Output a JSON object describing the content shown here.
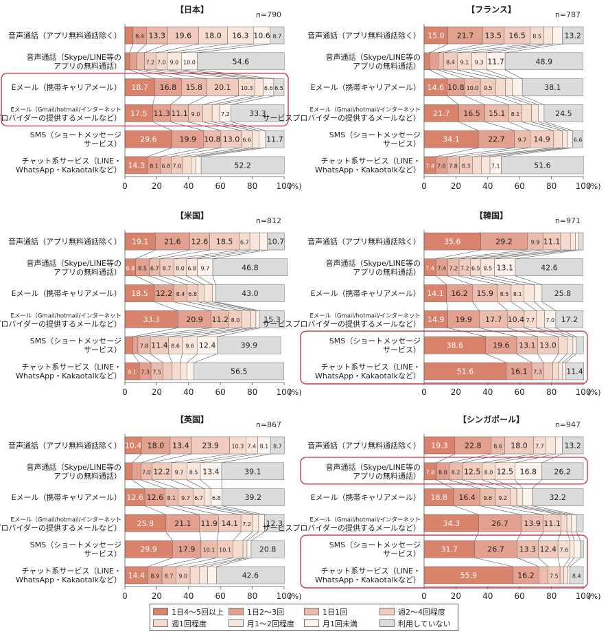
{
  "categories": [
    "音声通話（アプリ無料通話除く）",
    "音声通話（Skype/LINE等の|アプリの無料通話）",
    "Eメール（携帯キャリアメール）",
    "Eメール（Gmail/hotmail/インターネット|サービスプロバイダーの提供するメールなど）",
    "SMS（ショートメッセージ|サービス）",
    "チャット系サービス（LINE・|WhatsApp・Kakaotalkなど）"
  ],
  "legend": [
    "1日4～5回以上",
    "1日2～3回",
    "1日1回",
    "週2～4回程度",
    "週1回程度",
    "月1～2回程度",
    "月1回未満",
    "利用していない"
  ],
  "colors": [
    "#d9826c",
    "#e3a08e",
    "#ebbbab",
    "#f1ccbe",
    "#f5dccf",
    "#f9e7de",
    "#fdf3ed",
    "#dcdcdc"
  ],
  "axis": {
    "ticks": [
      "0",
      "20",
      "40",
      "60",
      "80",
      "100"
    ],
    "unit": "(%)"
  },
  "chart_data": [
    {
      "type": "bar",
      "stacked": true,
      "orientation": "horizontal",
      "title": "【日本】",
      "n": "n=790",
      "series": [
        [
          5.1,
          8.4,
          13.3,
          19.6,
          18.0,
          16.3,
          10.6,
          8.7
        ],
        [
          3.0,
          4.6,
          4.7,
          7.2,
          7.0,
          9.0,
          10.0,
          54.6
        ],
        [
          18.7,
          16.8,
          15.8,
          20.1,
          10.3,
          5.2,
          6.6,
          6.5
        ],
        [
          17.5,
          11.3,
          11.1,
          9.0,
          5.9,
          4.7,
          7.2,
          33.3
        ],
        [
          29.6,
          19.9,
          10.8,
          13.0,
          6.6,
          4.3,
          4.1,
          11.7
        ],
        [
          14.3,
          8.1,
          6.8,
          7.0,
          5.3,
          3.2,
          3.2,
          52.2
        ]
      ],
      "highlights": [
        [
          2,
          3
        ]
      ]
    },
    {
      "type": "bar",
      "stacked": true,
      "orientation": "horizontal",
      "title": "【フランス】",
      "n": "n=787",
      "series": [
        [
          15.0,
          21.7,
          13.5,
          16.5,
          8.5,
          5.6,
          6.0,
          13.2
        ],
        [
          3.6,
          5.2,
          3.6,
          8.4,
          9.1,
          9.3,
          11.7,
          48.9
        ],
        [
          14.6,
          10.8,
          10.0,
          9.5,
          6.2,
          4.4,
          6.2,
          38.1
        ],
        [
          21.7,
          16.5,
          15.1,
          8.1,
          6.1,
          4.2,
          3.7,
          24.5
        ],
        [
          34.1,
          22.7,
          9.7,
          14.9,
          5.4,
          3.3,
          3.2,
          6.6
        ],
        [
          7.4,
          7.0,
          7.8,
          8.3,
          5.6,
          5.3,
          7.1,
          51.6
        ]
      ],
      "highlights": []
    },
    {
      "type": "bar",
      "stacked": true,
      "orientation": "horizontal",
      "title": "【米国】",
      "n": "n=812",
      "series": [
        [
          19.1,
          21.6,
          12.6,
          18.5,
          6.7,
          6.3,
          4.7,
          10.7
        ],
        [
          6.8,
          8.5,
          6.7,
          8.7,
          8.0,
          6.8,
          9.7,
          46.8
        ],
        [
          18.5,
          12.2,
          8.4,
          6.8,
          3.8,
          5.2,
          2.2,
          43.0
        ],
        [
          33.3,
          20.9,
          11.2,
          8.0,
          5.7,
          3.2,
          2.5,
          15.3
        ],
        [
          4.9,
          3.3,
          7.8,
          11.4,
          8.6,
          9.6,
          12.4,
          39.9
        ],
        [
          9.1,
          7.3,
          7.5,
          5.8,
          5.0,
          4.3,
          4.4,
          56.5
        ]
      ],
      "highlights": []
    },
    {
      "type": "bar",
      "stacked": true,
      "orientation": "horizontal",
      "title": "【韓国】",
      "n": "n=971",
      "series": [
        [
          35.6,
          29.2,
          9.9,
          11.1,
          6.1,
          3.1,
          2.2,
          2.8
        ],
        [
          7.4,
          7.4,
          7.2,
          7.2,
          6.5,
          8.5,
          13.1,
          42.6
        ],
        [
          14.1,
          16.2,
          15.9,
          8.5,
          8.1,
          6.4,
          4.9,
          25.8
        ],
        [
          14.9,
          19.9,
          17.7,
          10.4,
          7.7,
          5.1,
          7.0,
          17.2
        ],
        [
          38.6,
          19.6,
          13.1,
          13.0,
          5.5,
          3.7,
          2.0,
          4.6
        ],
        [
          51.6,
          16.1,
          7.3,
          5.8,
          3.6,
          2.6,
          1.9,
          11.4
        ]
      ],
      "highlights": [
        [
          4,
          5
        ]
      ]
    },
    {
      "type": "bar",
      "stacked": true,
      "orientation": "horizontal",
      "title": "【英国】",
      "n": "n=867",
      "series": [
        [
          10.4,
          18.0,
          13.4,
          23.9,
          10.3,
          7.4,
          8.1,
          8.7
        ],
        [
          4.5,
          5.5,
          7.0,
          12.2,
          9.7,
          8.5,
          13.4,
          39.1
        ],
        [
          12.6,
          12.6,
          8.1,
          9.7,
          6.7,
          4.4,
          6.8,
          39.2
        ],
        [
          25.8,
          21.1,
          11.9,
          14.1,
          7.2,
          3.9,
          3.7,
          12.3
        ],
        [
          29.9,
          17.9,
          10.1,
          10.1,
          6.2,
          2.5,
          2.6,
          20.8
        ],
        [
          14.4,
          8.9,
          8.7,
          9.0,
          5.9,
          5.1,
          5.5,
          42.6
        ]
      ],
      "highlights": []
    },
    {
      "type": "bar",
      "stacked": true,
      "orientation": "horizontal",
      "title": "【シンガポール】",
      "n": "n=947",
      "series": [
        [
          19.3,
          22.8,
          8.6,
          18.0,
          7.7,
          6.1,
          4.3,
          13.2
        ],
        [
          7.8,
          8.0,
          8.2,
          12.5,
          8.0,
          12.5,
          16.8,
          26.2
        ],
        [
          18.8,
          16.4,
          9.6,
          9.2,
          4.2,
          3.8,
          5.8,
          32.2
        ],
        [
          34.3,
          26.7,
          13.9,
          11.1,
          3.7,
          2.9,
          3.1,
          4.3
        ],
        [
          31.7,
          26.7,
          13.3,
          12.4,
          7.6,
          2.6,
          4.0,
          1.8
        ],
        [
          55.9,
          16.2,
          5.8,
          7.5,
          2.4,
          2.3,
          1.5,
          8.4
        ]
      ],
      "highlights": [
        [
          1,
          1
        ],
        [
          4,
          5
        ]
      ]
    }
  ]
}
